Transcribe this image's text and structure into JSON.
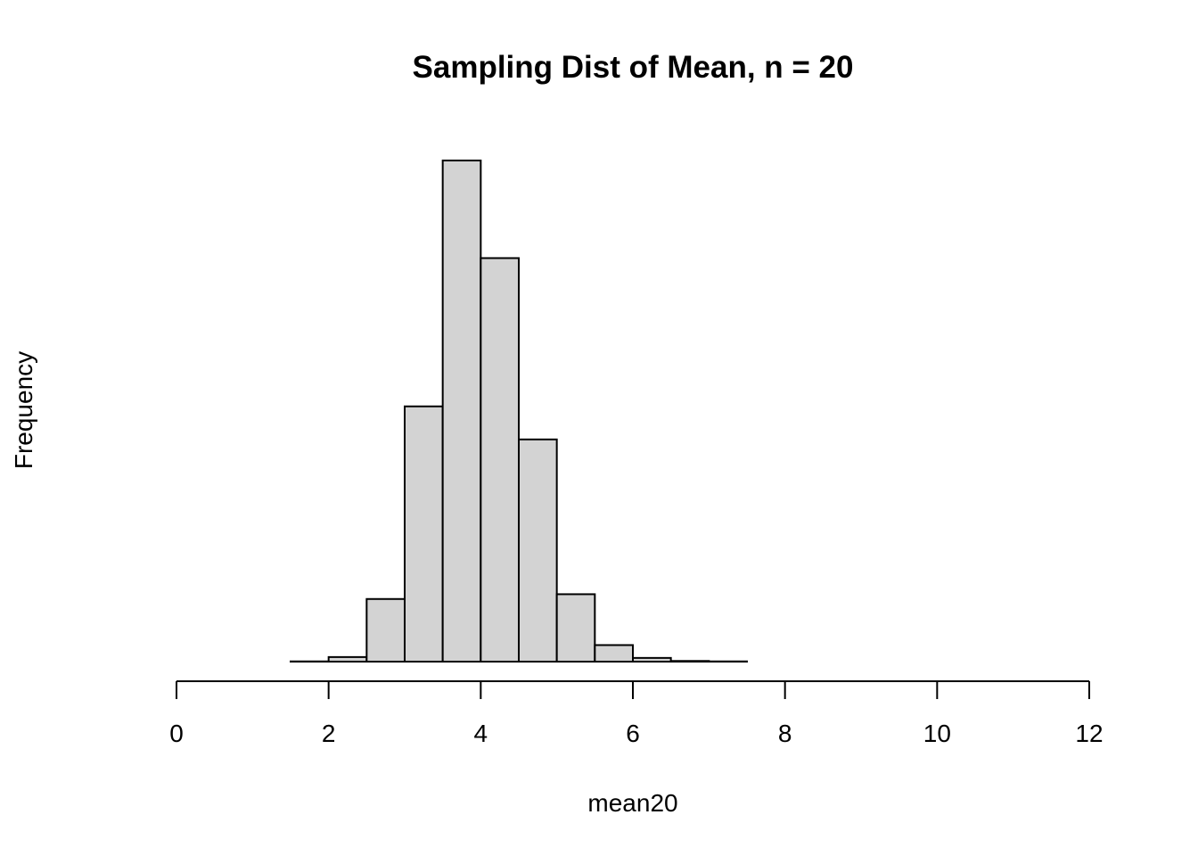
{
  "chart_data": {
    "type": "bar",
    "title": "Sampling Dist of Mean, n = 20",
    "xlabel": "mean20",
    "ylabel": "Frequency",
    "xlim": [
      0,
      12
    ],
    "x_ticks": [
      0,
      2,
      4,
      6,
      8,
      10,
      12
    ],
    "y_axis_shown": false,
    "bin_edges": [
      1.5,
      2.0,
      2.5,
      3.0,
      3.5,
      4.0,
      4.5,
      5.0,
      5.5,
      6.0,
      6.5,
      7.0,
      7.5
    ],
    "values": [
      1,
      21,
      288,
      1174,
      2305,
      1856,
      1022,
      310,
      76,
      17,
      3,
      1
    ],
    "ylim": [
      0,
      2305
    ],
    "grid": false,
    "bar_fill": "#d3d3d3",
    "bar_stroke": "#000000"
  }
}
